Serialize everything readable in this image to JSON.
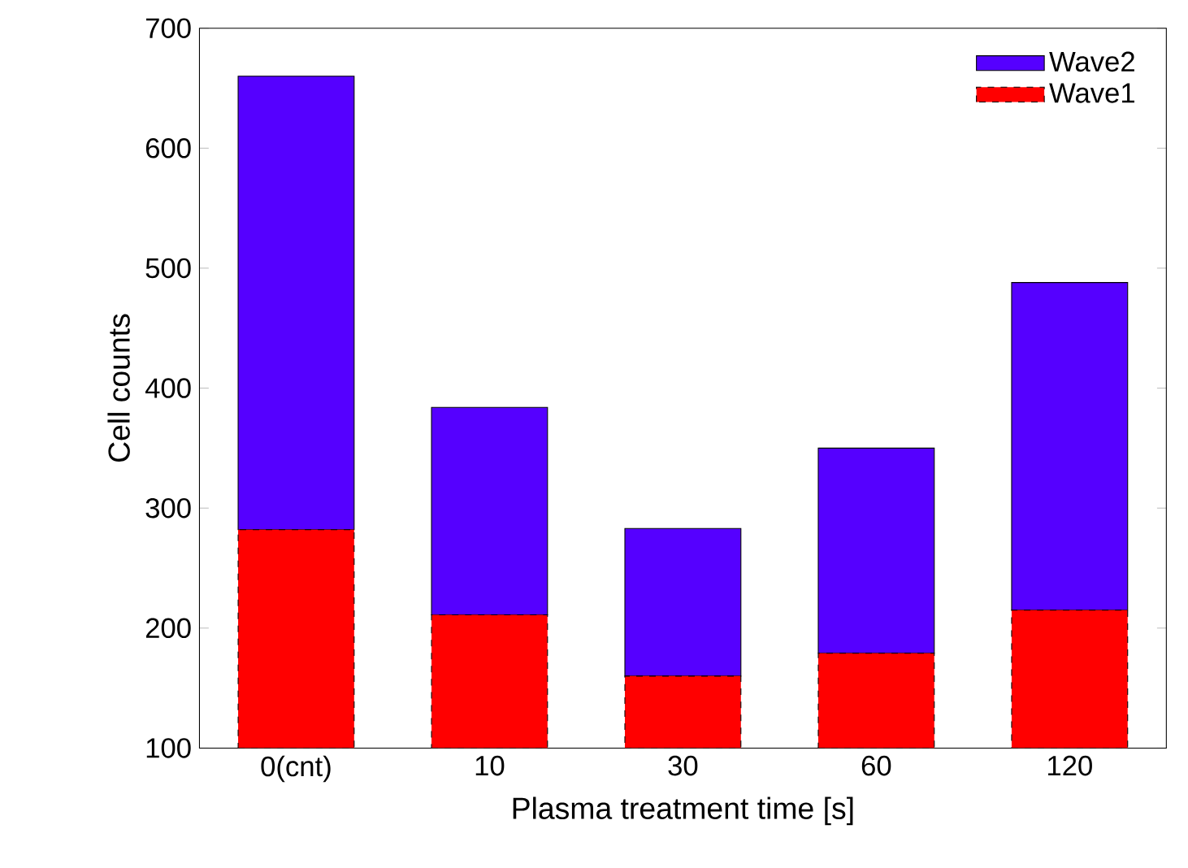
{
  "chart_data": {
    "type": "bar",
    "stacked": true,
    "xlabel": "Plasma treatment time [s]",
    "ylabel": "Cell counts",
    "categories": [
      "0(cnt)",
      "10",
      "30",
      "60",
      "120"
    ],
    "series": [
      {
        "name": "Wave1",
        "color": "#ff0000",
        "line_style": "dashed",
        "values": [
          282,
          211,
          160,
          179,
          215
        ]
      },
      {
        "name": "Wave2",
        "color": "#5500ff",
        "values": [
          378,
          173,
          123,
          171,
          273
        ]
      }
    ],
    "ylim": [
      100,
      700
    ],
    "yticks": [
      100,
      200,
      300,
      400,
      500,
      600,
      700
    ],
    "legend": "top right",
    "grid": false
  }
}
